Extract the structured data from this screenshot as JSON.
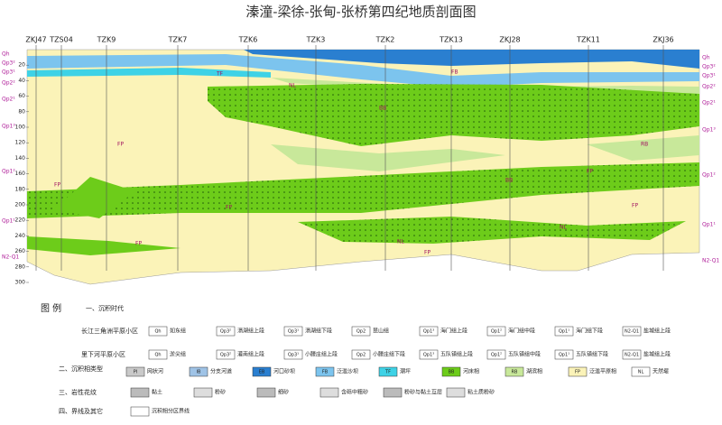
{
  "title": "溱潼-梁徐-张甸-张桥第四纪地质剖面图",
  "boreholes": [
    "ZKJ47",
    "TZS04",
    "TZK9",
    "TZK7",
    "TZK6",
    "TZK3",
    "TZK2",
    "TZK13",
    "ZKJ28",
    "TZK11",
    "ZKJ36"
  ],
  "depth_ticks": [
    20,
    40,
    60,
    80,
    100,
    120,
    140,
    160,
    180,
    200,
    220,
    240,
    260,
    280,
    300
  ],
  "left_units": [
    "Qh",
    "Qp3²",
    "Qp3¹",
    "Qp2²",
    "Qp2¹",
    "Qp1³",
    "Qp1²",
    "Qp1¹",
    "N2-Q1"
  ],
  "right_units": [
    "Qh",
    "Qp3²",
    "Qp3¹",
    "Qp2²",
    "Qp2¹",
    "Qp1³",
    "Qp1²",
    "Qp1¹",
    "N2-Q1"
  ],
  "layer_labels": [
    "FP",
    "FP",
    "FP",
    "FP",
    "FP",
    "FP",
    "NL",
    "NL",
    "BB",
    "BB",
    "RB",
    "FB",
    "TF",
    "FP",
    "NL"
  ],
  "legend": {
    "heading": "图 例",
    "age": {
      "title": "一、沉积时代",
      "rows": [
        {
          "label": "长江三角洲平原小区",
          "items": [
            [
              "Qh",
              "如东组"
            ],
            [
              "Qp3²",
              "滆湖组上段"
            ],
            [
              "Qp3¹",
              "滆湖组下段"
            ],
            [
              "Qp2",
              "昆山组"
            ],
            [
              "Qp1³",
              "海门组上段"
            ],
            [
              "Qp1²",
              "海门组中段"
            ],
            [
              "Qp1¹",
              "海门组下段"
            ],
            [
              "N2-Q1",
              "盐城组上段"
            ]
          ]
        },
        {
          "label": "里下河平原小区",
          "items": [
            [
              "Qh",
              "淤尖组"
            ],
            [
              "Qp3²",
              "灌南组上段"
            ],
            [
              "Qp3¹",
              "小腰庄组上段"
            ],
            [
              "Qp2",
              "小腰庄组下段"
            ],
            [
              "Qp1³",
              "五队镇组上段"
            ],
            [
              "Qp1²",
              "五队镇组中段"
            ],
            [
              "Qp1¹",
              "五队镇组下段"
            ],
            [
              "N2-Q1",
              "盐城组上段"
            ]
          ]
        }
      ]
    },
    "facies": {
      "title": "二、沉积相类型",
      "items": [
        [
          "PI",
          "网状河",
          "#c9c9c9"
        ],
        [
          "IB",
          "分支河道",
          "#9fc3e6"
        ],
        [
          "EB",
          "河口砂坝",
          "#2a7fd0"
        ],
        [
          "FB",
          "泛滥沙坝",
          "#7cc4ee"
        ],
        [
          "TF",
          "潮坪",
          "#3ed2e6"
        ],
        [
          "BB",
          "河床相",
          "#6dcc1a"
        ],
        [
          "RB",
          "湖滨相",
          "#c8e89a"
        ],
        [
          "FP",
          "泛滥平原相",
          "#fbf3b8"
        ],
        [
          "NL",
          "天然堤",
          "#ffffff"
        ]
      ]
    },
    "lithology": {
      "title": "三、岩性花纹",
      "items": [
        "黏土",
        "粉砂",
        "细砂",
        "含砾中粗砂",
        "粉砂与黏土互层",
        "粘土质粉砂"
      ]
    },
    "other": {
      "title": "四、界线及其它",
      "items": [
        "沉积相分区界线"
      ]
    }
  }
}
